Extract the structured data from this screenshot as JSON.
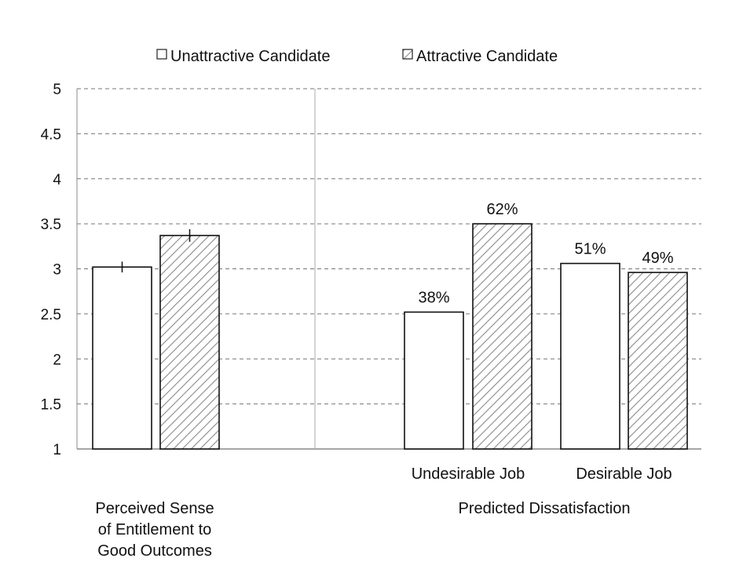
{
  "chart_data": {
    "type": "bar",
    "legend": {
      "placement": "top-center",
      "entries": [
        "Unattractive Candidate",
        "Attractive Candidate"
      ]
    },
    "series": [
      {
        "name": "Unattractive Candidate",
        "values": [
          3.02,
          2.52,
          3.06
        ],
        "fill": "#ffffff",
        "pattern": "none"
      },
      {
        "name": "Attractive Candidate",
        "values": [
          3.37,
          3.5,
          2.96
        ],
        "fill": "#ffffff",
        "pattern": "diagonal-hatch"
      }
    ],
    "categories": [
      "",
      "Undesirable Job",
      "Desirable Job"
    ],
    "panels": [
      {
        "label": "Perceived Sense of Entitlement to Good Outcomes",
        "label_lines": [
          "Perceived Sense",
          "of Entitlement to",
          "Good Outcomes"
        ],
        "category_indices": [
          0
        ]
      },
      {
        "label": "Predicted Dissatisfaction",
        "label_lines": [
          "Predicted Dissatisfaction"
        ],
        "category_indices": [
          1,
          2
        ]
      }
    ],
    "data_labels": [
      {
        "category": "Undesirable Job",
        "series": "Unattractive Candidate",
        "text": "38%"
      },
      {
        "category": "Undesirable Job",
        "series": "Attractive Candidate",
        "text": "62%"
      },
      {
        "category": "Desirable Job",
        "series": "Unattractive Candidate",
        "text": "51%"
      },
      {
        "category": "Desirable Job",
        "series": "Attractive Candidate",
        "text": "49%"
      }
    ],
    "error_bars": [
      {
        "category": 0,
        "series": "Unattractive Candidate",
        "low": 2.96,
        "high": 3.08
      },
      {
        "category": 0,
        "series": "Attractive Candidate",
        "low": 3.3,
        "high": 3.44
      }
    ],
    "y_ticks": [
      "1",
      "1.5",
      "2",
      "2.5",
      "3",
      "3.5",
      "4",
      "4.5",
      "5"
    ],
    "ylim": [
      1,
      5
    ],
    "grid": "horizontal-dashed",
    "title": "",
    "xlabel": "",
    "ylabel": "",
    "colors": {
      "axis": "#888888",
      "grid": "#777777",
      "bar_edge": "#111111",
      "hatch": "#888888"
    }
  }
}
